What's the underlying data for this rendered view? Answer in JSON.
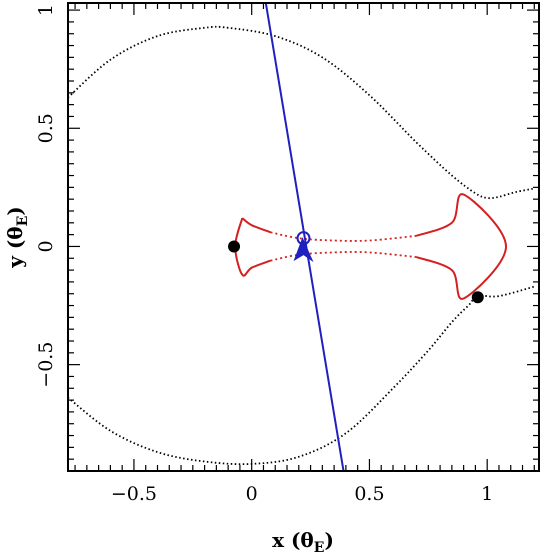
{
  "chart_data": {
    "type": "scatter",
    "xlabel": {
      "main": "x (θ",
      "sub": "E",
      "close": ")"
    },
    "ylabel": {
      "main": "y (θ",
      "sub": "E",
      "close": ")"
    },
    "xlim": [
      -0.78,
      1.22
    ],
    "ylim": [
      -0.95,
      1.03
    ],
    "xticks": [
      -0.5,
      0,
      0.5,
      1
    ],
    "yticks": [
      -0.5,
      0,
      0.5,
      1
    ],
    "x_tick_labels": [
      "−0.5",
      "0",
      "0.5",
      "1"
    ],
    "y_tick_labels": [
      "−0.5",
      "0",
      "0.5",
      "1"
    ],
    "grid": false,
    "colors": {
      "critical_curve": "#000000",
      "caustic": "#d42020",
      "trajectory": "#2020c0",
      "lens": "#000000"
    },
    "series": [
      {
        "role": "critical-curve-upper",
        "style": "dotted",
        "x": [
          -0.78,
          -0.6,
          -0.4,
          -0.2,
          -0.1,
          0.1,
          0.3,
          0.5,
          0.7,
          0.85,
          0.95,
          1.0,
          1.05,
          1.12,
          1.2
        ],
        "y": [
          0.63,
          0.79,
          0.89,
          0.925,
          0.925,
          0.89,
          0.8,
          0.64,
          0.44,
          0.3,
          0.225,
          0.205,
          0.21,
          0.23,
          0.245
        ]
      },
      {
        "role": "critical-curve-lower",
        "style": "dotted",
        "x": [
          -0.78,
          -0.6,
          -0.4,
          -0.2,
          0.0,
          0.2,
          0.4,
          0.6,
          0.75,
          0.85,
          0.92,
          0.96,
          1.05,
          1.2
        ],
        "y": [
          -0.64,
          -0.78,
          -0.87,
          -0.91,
          -0.92,
          -0.89,
          -0.79,
          -0.6,
          -0.44,
          -0.32,
          -0.25,
          -0.21,
          -0.21,
          -0.17
        ]
      },
      {
        "role": "caustic",
        "style": "solid+dotted",
        "x": [
          -0.04,
          0.0,
          0.08,
          0.2,
          0.35,
          0.5,
          0.7,
          0.85,
          0.9,
          1.08,
          0.9,
          0.85,
          0.7,
          0.5,
          0.35,
          0.2,
          0.08,
          0.0,
          -0.04,
          -0.07,
          -0.04
        ],
        "y": [
          0.12,
          0.09,
          0.06,
          0.035,
          0.025,
          0.025,
          0.045,
          0.1,
          0.22,
          0.0,
          -0.22,
          -0.1,
          -0.045,
          -0.025,
          -0.025,
          -0.035,
          -0.06,
          -0.09,
          -0.12,
          0.0,
          0.12
        ]
      },
      {
        "role": "source-trajectory",
        "style": "solid",
        "x": [
          0.06,
          0.39
        ],
        "y": [
          1.03,
          -0.95
        ]
      }
    ],
    "lens_points": [
      {
        "x": -0.075,
        "y": 0.0
      },
      {
        "x": 0.96,
        "y": -0.215
      }
    ],
    "source_marker": {
      "x": 0.22,
      "y": 0.035
    },
    "direction_arrow": {
      "x": 0.22,
      "y": -0.02
    }
  }
}
